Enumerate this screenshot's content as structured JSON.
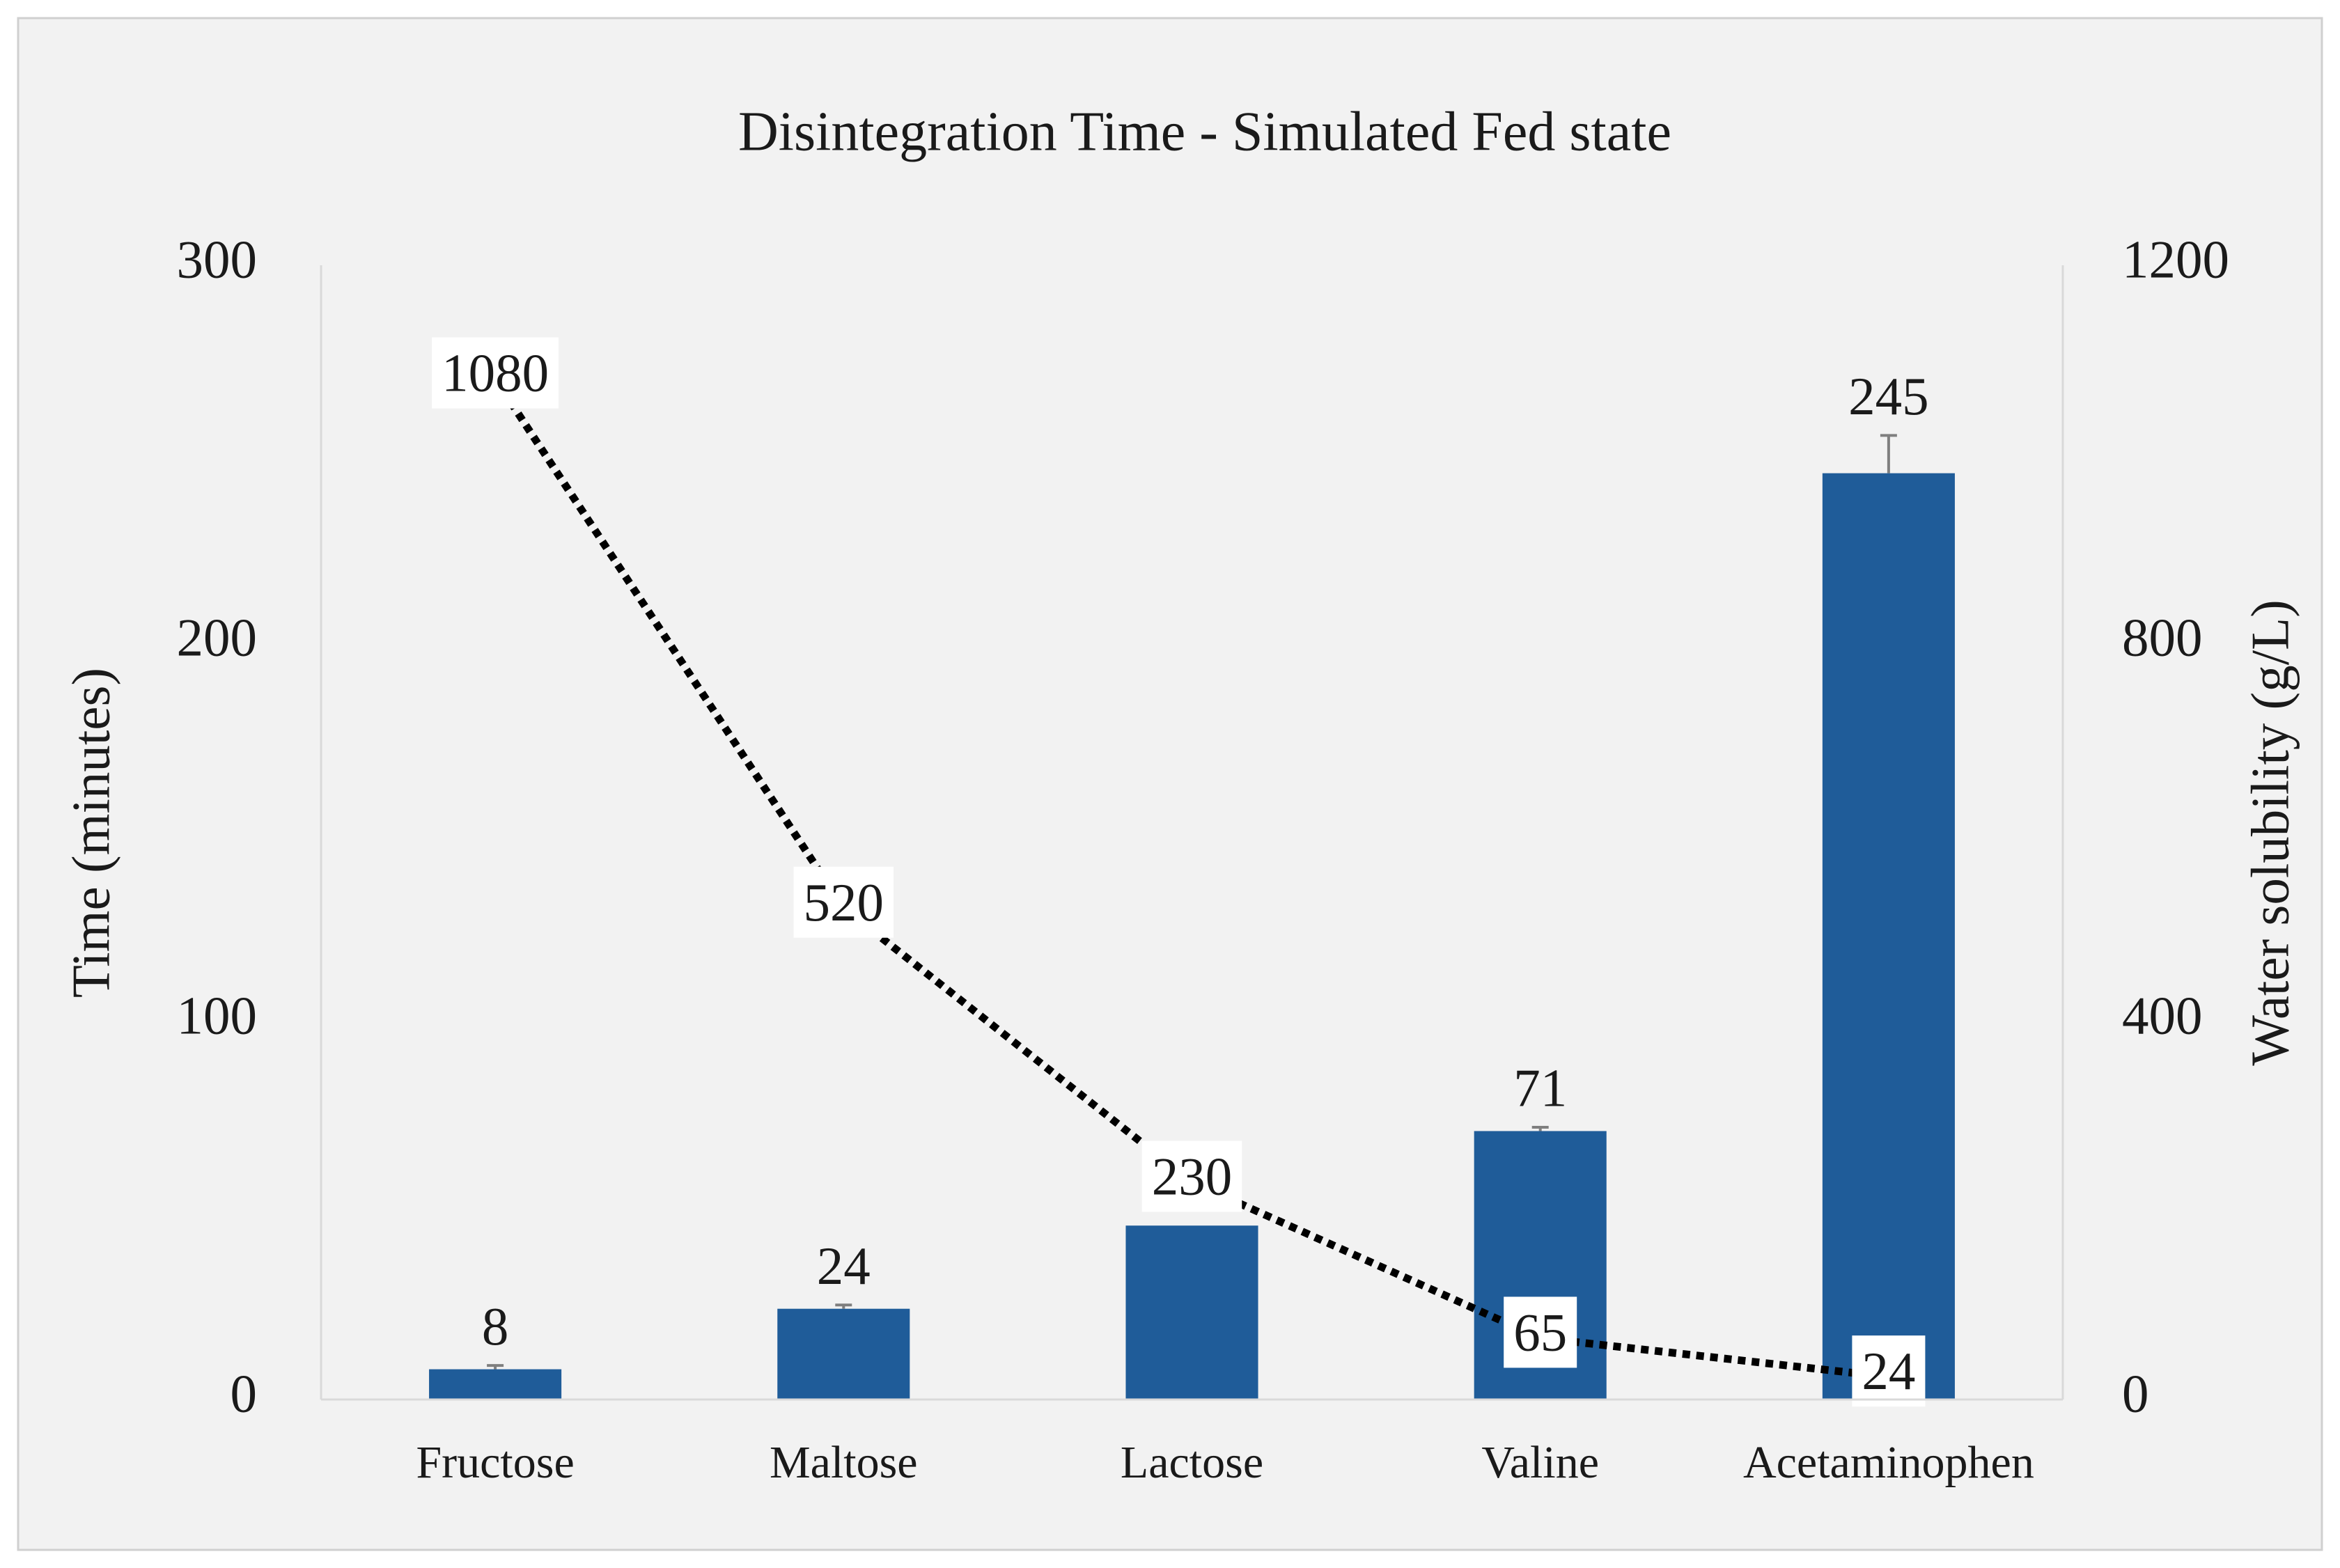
{
  "chart_data": {
    "type": "bar",
    "title": "Disintegration Time - Simulated Fed state",
    "ylabel": "Time (minutes)",
    "y2label": "Water solubility (g/L)",
    "categories": [
      "Fructose",
      "Maltose",
      "Lactose",
      "Valine",
      "Acetaminophen"
    ],
    "series": [
      {
        "type": "bar",
        "color": "#1f5c99",
        "values": [
          8,
          24,
          46,
          71,
          245
        ],
        "errors": [
          1,
          1,
          0,
          1,
          10
        ]
      },
      {
        "type": "line",
        "axis": "y2",
        "color": "#000000",
        "line_style": "dotted",
        "values": [
          1080,
          520,
          230,
          65,
          24
        ]
      }
    ],
    "ylim": [
      0,
      300
    ],
    "yticks": [
      0,
      100,
      200,
      300
    ],
    "y2lim": [
      0,
      1200
    ],
    "y2ticks": [
      0,
      400,
      800,
      1200
    ],
    "grid": false
  }
}
